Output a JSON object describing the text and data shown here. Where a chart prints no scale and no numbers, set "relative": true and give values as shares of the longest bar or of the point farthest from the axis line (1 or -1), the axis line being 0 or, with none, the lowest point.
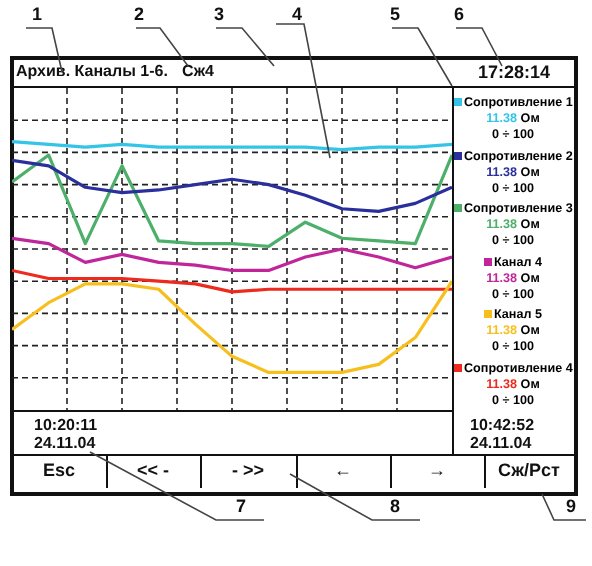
{
  "chart_data": {
    "type": "line",
    "relative": true,
    "grid": true,
    "line_style": "solid",
    "marker": "none",
    "legend": "right",
    "categories": [
      null,
      null,
      null,
      null,
      null,
      null,
      null,
      null,
      null,
      null,
      null,
      null,
      null
    ],
    "series": [
      {
        "name": "Сопротивление 1",
        "color": "#33c4e8",
        "values": [
          1,
          0.99,
          0.98,
          0.99,
          0.98,
          0.98,
          0.98,
          0.98,
          0.98,
          0.97,
          0.98,
          0.98,
          0.99
        ]
      },
      {
        "name": "Сопротивление 2",
        "color": "#2a2f9c",
        "values": [
          0.93,
          0.91,
          0.83,
          0.81,
          0.82,
          0.84,
          0.86,
          0.84,
          0.8,
          0.75,
          0.74,
          0.77,
          0.83
        ]
      },
      {
        "name": "Сопротивление 3",
        "color": "#4caf6a",
        "values": [
          0.85,
          0.95,
          0.62,
          0.91,
          0.63,
          0.62,
          0.62,
          0.61,
          0.7,
          0.64,
          0.63,
          0.62,
          0.95
        ]
      },
      {
        "name": "Канал 4",
        "color": "#c0269a",
        "values": [
          0.64,
          0.62,
          0.55,
          0.58,
          0.55,
          0.54,
          0.52,
          0.52,
          0.57,
          0.6,
          0.57,
          0.53,
          0.57
        ]
      },
      {
        "name": "Канал 5",
        "color": "#f7bf1e",
        "values": [
          0.3,
          0.4,
          0.47,
          0.47,
          0.45,
          0.32,
          0.2,
          0.14,
          0.14,
          0.14,
          0.17,
          0.27,
          0.48
        ]
      },
      {
        "name": "Сопротивление 4",
        "color": "#ee2a1e",
        "values": [
          0.52,
          0.49,
          0.49,
          0.49,
          0.48,
          0.47,
          0.44,
          0.45,
          0.45,
          0.45,
          0.45,
          0.45,
          0.45
        ]
      }
    ],
    "annotations": [
      "Архив. Каналы 1-6.",
      "Сж4",
      "17:28:14",
      "10:20:11",
      "24.11.04",
      "10:42:52",
      "24.11.04",
      "Esc",
      "<< -",
      "- >>",
      "←",
      "→",
      "Сж/Рст",
      "1",
      "2",
      "3",
      "4",
      "5",
      "6",
      "7",
      "8",
      "9",
      "11.38",
      "Ом",
      "0 ÷ 100",
      "11.38",
      "Ом",
      "0 ÷ 100",
      "11.38",
      "Ом",
      "0 ÷ 100",
      "11.38",
      "Ом",
      "0 ÷ 100",
      "11.38",
      "Ом",
      "0 ÷ 100",
      "11.38",
      "Ом",
      "0 ÷ 100"
    ]
  }
}
